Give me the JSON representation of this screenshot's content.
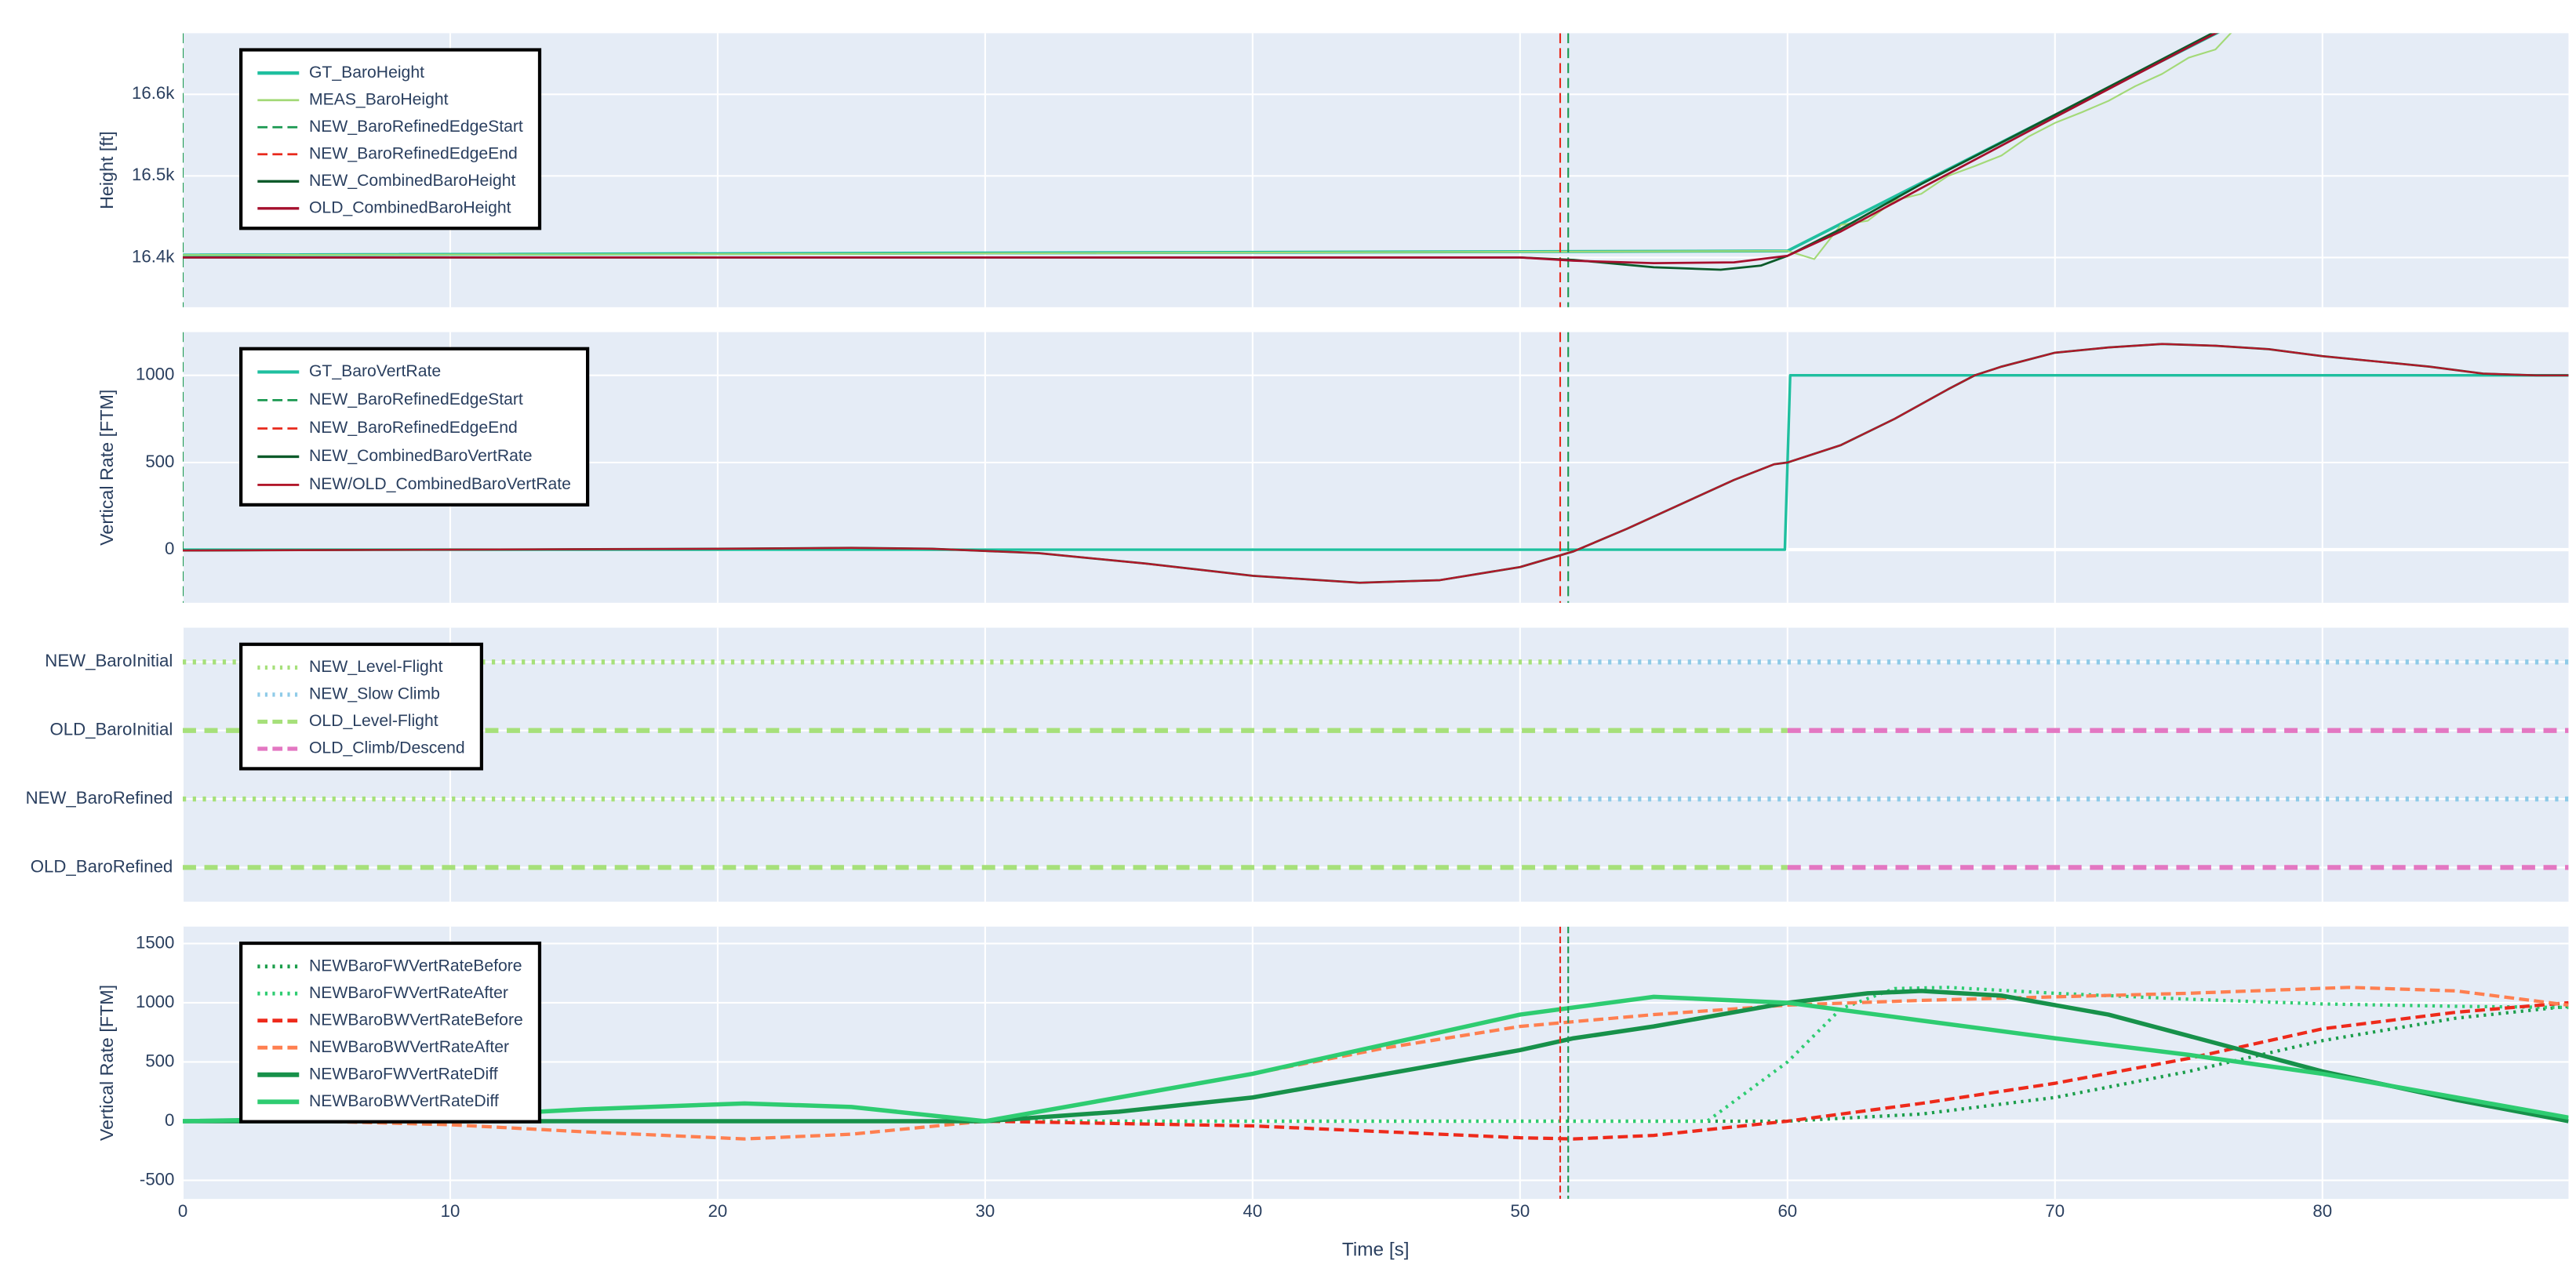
{
  "chart_data": [
    {
      "type": "line",
      "ylabel": "Height [ft]",
      "xlim": [
        0,
        89.2
      ],
      "ylim": [
        16339,
        16675
      ],
      "yticks": [
        {
          "value": 16400,
          "label": "16.4k"
        },
        {
          "value": 16500,
          "label": "16.5k"
        },
        {
          "value": 16600,
          "label": "16.6k"
        }
      ],
      "grid": true,
      "legend": "top-left",
      "series": [
        {
          "name": "GT_BaroHeight",
          "color": "#1fbf9f",
          "width": 1.8,
          "dash": "solid",
          "x": [
            0,
            60,
            80
          ],
          "values": [
            16403,
            16408,
            16741
          ]
        },
        {
          "name": "MEAS_BaroHeight",
          "color": "#a3d977",
          "width": 1,
          "dash": "solid",
          "x": [
            0,
            20,
            40,
            60,
            61,
            62,
            63,
            64,
            65,
            66,
            67,
            68,
            69,
            70,
            71,
            72,
            73,
            74,
            75,
            76,
            77
          ],
          "values": [
            16403,
            16404,
            16406,
            16408,
            16398,
            16440,
            16445,
            16470,
            16478,
            16500,
            16512,
            16525,
            16548,
            16565,
            16578,
            16592,
            16610,
            16625,
            16645,
            16655,
            16690
          ]
        },
        {
          "name": "NEW_BaroRefinedEdgeStart",
          "color": "#1a9850",
          "width": 1,
          "dash": "dash",
          "vline_x": [
            0,
            51.8
          ]
        },
        {
          "name": "NEW_BaroRefinedEdgeEnd",
          "color": "#e8291c",
          "width": 1,
          "dash": "dash",
          "vline_x": [
            51.5
          ]
        },
        {
          "name": "NEW_CombinedBaroHeight",
          "color": "#0b5a2a",
          "width": 1.3,
          "dash": "solid",
          "x": [
            0,
            50,
            52,
            55,
            57.5,
            59,
            60,
            62,
            65,
            70,
            75,
            80
          ],
          "values": [
            16400,
            16400,
            16397,
            16388,
            16385,
            16390,
            16402,
            16435,
            16490,
            16575,
            16660,
            16745
          ]
        },
        {
          "name": "OLD_CombinedBaroHeight",
          "color": "#a50f2d",
          "width": 1.3,
          "dash": "solid",
          "x": [
            0,
            50,
            52,
            55,
            58,
            60,
            62,
            65,
            70,
            75,
            80
          ],
          "values": [
            16400,
            16400,
            16396,
            16393,
            16394,
            16402,
            16432,
            16485,
            16572,
            16658,
            16742
          ]
        }
      ]
    },
    {
      "type": "line",
      "ylabel": "Vertical Rate [FTM]",
      "xlim": [
        0,
        89.2
      ],
      "ylim": [
        -305,
        1248
      ],
      "yticks": [
        0,
        500,
        1000
      ],
      "grid": true,
      "legend": "top-left",
      "series": [
        {
          "name": "GT_BaroVertRate",
          "color": "#1fbf9f",
          "width": 1.6,
          "dash": "solid",
          "x": [
            0,
            59.9,
            60.1,
            89.2
          ],
          "values": [
            0,
            0,
            1000,
            1000
          ]
        },
        {
          "name": "NEW_BaroRefinedEdgeStart",
          "color": "#1a9850",
          "width": 1,
          "dash": "dash",
          "vline_x": [
            0,
            51.8
          ]
        },
        {
          "name": "NEW_BaroRefinedEdgeEnd",
          "color": "#e8291c",
          "width": 1,
          "dash": "dash",
          "vline_x": [
            51.5
          ]
        },
        {
          "name": "NEW_CombinedBaroVertRate",
          "color": "#0b5a2a",
          "width": 1.3,
          "dash": "solid",
          "x": [
            0,
            10,
            20,
            25,
            28,
            32,
            36,
            40,
            44,
            47,
            50,
            52,
            54,
            56,
            58,
            59.5,
            60,
            62,
            64,
            66,
            67,
            68,
            70,
            72,
            74,
            76,
            78,
            80,
            82,
            84,
            86,
            88,
            89.2
          ],
          "values": [
            -5,
            0,
            5,
            10,
            5,
            -20,
            -80,
            -150,
            -190,
            -175,
            -100,
            -10,
            120,
            260,
            400,
            490,
            500,
            600,
            750,
            920,
            1000,
            1050,
            1130,
            1160,
            1180,
            1170,
            1150,
            1110,
            1080,
            1050,
            1010,
            1000,
            1000
          ]
        },
        {
          "name": "NEW/OLD_CombinedBaroVertRate",
          "color": "#b2182b",
          "width": 1.1,
          "dash": "solid",
          "x": [
            0,
            10,
            20,
            25,
            28,
            32,
            36,
            40,
            44,
            47,
            50,
            52,
            54,
            56,
            58,
            59.5,
            60,
            62,
            64,
            66,
            67,
            68,
            70,
            72,
            74,
            76,
            78,
            80,
            82,
            84,
            86,
            88,
            89.2
          ],
          "values": [
            -5,
            0,
            5,
            10,
            5,
            -20,
            -80,
            -150,
            -190,
            -175,
            -100,
            -10,
            120,
            260,
            400,
            490,
            500,
            600,
            750,
            920,
            1000,
            1050,
            1130,
            1160,
            1180,
            1170,
            1150,
            1110,
            1080,
            1050,
            1010,
            1000,
            1000
          ]
        }
      ]
    },
    {
      "type": "state",
      "xlim": [
        0,
        89.2
      ],
      "grid": true,
      "legend": "top-left",
      "categories": [
        "NEW_BaroInitial",
        "OLD_BaroInitial",
        "NEW_BaroRefined",
        "OLD_BaroRefined"
      ],
      "series": [
        {
          "name": "NEW_Level-Flight",
          "color": "#a6e07a",
          "width": 3,
          "dash": "dot",
          "x": [
            0,
            51.8
          ],
          "rows": [
            0,
            2
          ]
        },
        {
          "name": "NEW_Slow Climb",
          "color": "#8fcbe8",
          "width": 3,
          "dash": "dot",
          "x": [
            51.8,
            89.2
          ],
          "rows": [
            0,
            2
          ]
        },
        {
          "name": "OLD_Level-Flight",
          "color": "#a6e07a",
          "width": 3,
          "dash": "dash",
          "x": [
            0,
            60
          ],
          "rows": [
            1,
            3
          ]
        },
        {
          "name": "OLD_Climb/Descend",
          "color": "#e377c2",
          "width": 3,
          "dash": "dash",
          "x": [
            60,
            89.2
          ],
          "rows": [
            1,
            3
          ]
        }
      ]
    },
    {
      "type": "line",
      "ylabel": "Vertical Rate [FTM]",
      "xlabel": "Time [s]",
      "xlim": [
        0,
        89.2
      ],
      "ylim": [
        -657,
        1643
      ],
      "xticks": [
        0,
        10,
        20,
        30,
        40,
        50,
        60,
        70,
        80
      ],
      "yticks": [
        -500,
        0,
        500,
        1000,
        1500
      ],
      "grid": true,
      "legend": "top-left",
      "vlines": [
        {
          "color": "#e8291c",
          "x": 51.5
        },
        {
          "color": "#1a9850",
          "x": 51.8
        }
      ],
      "series": [
        {
          "name": "NEWBaroFWVertRateBefore",
          "color": "#1b9e4b",
          "width": 2,
          "dash": "dot",
          "x": [
            0,
            60,
            65,
            70,
            75,
            80,
            85,
            89.2
          ],
          "values": [
            0,
            0,
            60,
            200,
            420,
            680,
            870,
            970
          ]
        },
        {
          "name": "NEWBaroFWVertRateAfter",
          "color": "#2ecc71",
          "width": 2,
          "dash": "dot",
          "x": [
            0,
            57,
            60,
            62,
            64,
            66,
            70,
            75,
            80,
            85,
            89.2
          ],
          "values": [
            0,
            0,
            500,
            950,
            1120,
            1130,
            1080,
            1030,
            990,
            970,
            960
          ]
        },
        {
          "name": "NEWBaroBWVertRateBefore",
          "color": "#ee2a1b",
          "width": 2,
          "dash": "dash",
          "x": [
            0,
            30,
            40,
            45,
            50,
            52,
            55,
            60,
            65,
            70,
            75,
            80,
            85,
            89.2
          ],
          "values": [
            0,
            0,
            -40,
            -90,
            -140,
            -150,
            -120,
            0,
            150,
            320,
            530,
            780,
            920,
            1000
          ]
        },
        {
          "name": "NEWBaroBWVertRateAfter",
          "color": "#ff7f50",
          "width": 2,
          "dash": "dash",
          "x": [
            0,
            5,
            10,
            15,
            21,
            25,
            30,
            35,
            40,
            45,
            50,
            55,
            60,
            65,
            70,
            75,
            81,
            85,
            89.2
          ],
          "values": [
            0,
            0,
            -30,
            -90,
            -150,
            -110,
            0,
            200,
            400,
            620,
            800,
            900,
            980,
            1020,
            1050,
            1080,
            1130,
            1100,
            980
          ]
        },
        {
          "name": "NEWBaroFWVertRateDiff",
          "color": "#17914a",
          "width": 2.6,
          "dash": "solid",
          "x": [
            0,
            30,
            35,
            40,
            45,
            50,
            52,
            55,
            60,
            63,
            65,
            68,
            72,
            75,
            77,
            80,
            85,
            89.2
          ],
          "values": [
            0,
            0,
            80,
            200,
            400,
            600,
            700,
            800,
            1000,
            1080,
            1100,
            1060,
            900,
            720,
            600,
            420,
            180,
            0
          ]
        },
        {
          "name": "NEWBaroBWVertRateDiff",
          "color": "#2ecc71",
          "width": 2.6,
          "dash": "solid",
          "x": [
            0,
            10,
            15,
            21,
            25,
            30,
            35,
            40,
            45,
            50,
            55,
            60,
            65,
            70,
            75,
            80,
            85,
            89.2
          ],
          "values": [
            0,
            40,
            100,
            150,
            120,
            0,
            200,
            400,
            650,
            900,
            1050,
            1000,
            850,
            700,
            560,
            400,
            200,
            30
          ]
        }
      ]
    }
  ]
}
